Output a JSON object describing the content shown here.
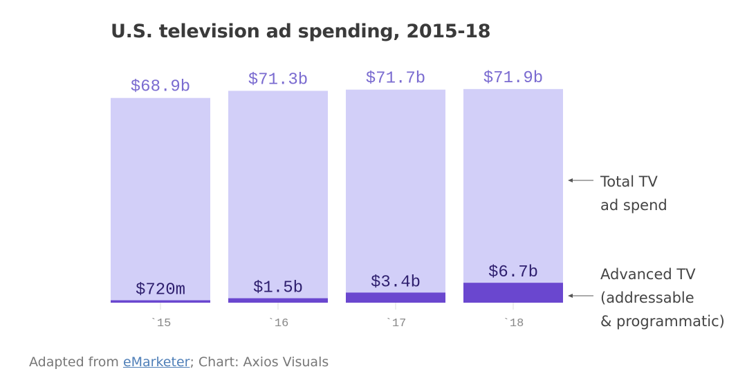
{
  "chart_data": {
    "type": "bar",
    "title": "U.S. television ad spending, 2015-18",
    "categories": [
      "`15",
      "`16",
      "`17",
      "`18"
    ],
    "series": [
      {
        "name": "Total TV ad spend",
        "values": [
          68.9,
          71.3,
          71.7,
          71.9
        ],
        "labels": [
          "$68.9b",
          "$71.3b",
          "$71.7b",
          "$71.9b"
        ],
        "color": "#d2cff8"
      },
      {
        "name": "Advanced TV (addressable & programmatic)",
        "values": [
          0.72,
          1.5,
          3.4,
          6.7
        ],
        "labels": [
          "$720m",
          "$1.5b",
          "$3.4b",
          "$6.7b"
        ],
        "color": "#6a47cf"
      }
    ],
    "units": "billions USD",
    "ylim": [
      0,
      72
    ],
    "grid": false,
    "xlabel": "",
    "ylabel": "",
    "annotations": [
      {
        "target": "Total TV ad spend",
        "lines": [
          "Total TV",
          "ad spend"
        ]
      },
      {
        "target": "Advanced TV (addressable & programmatic)",
        "lines": [
          "Advanced TV",
          "(addressable",
          "& programmatic)"
        ]
      }
    ]
  },
  "colors": {
    "total_label": "#7a6bd0",
    "advanced_label": "#2e1f6e",
    "tick": "#888888"
  },
  "footer": {
    "prefix": "Adapted from ",
    "link": "eMarketer",
    "suffix": "; Chart: Axios Visuals"
  }
}
